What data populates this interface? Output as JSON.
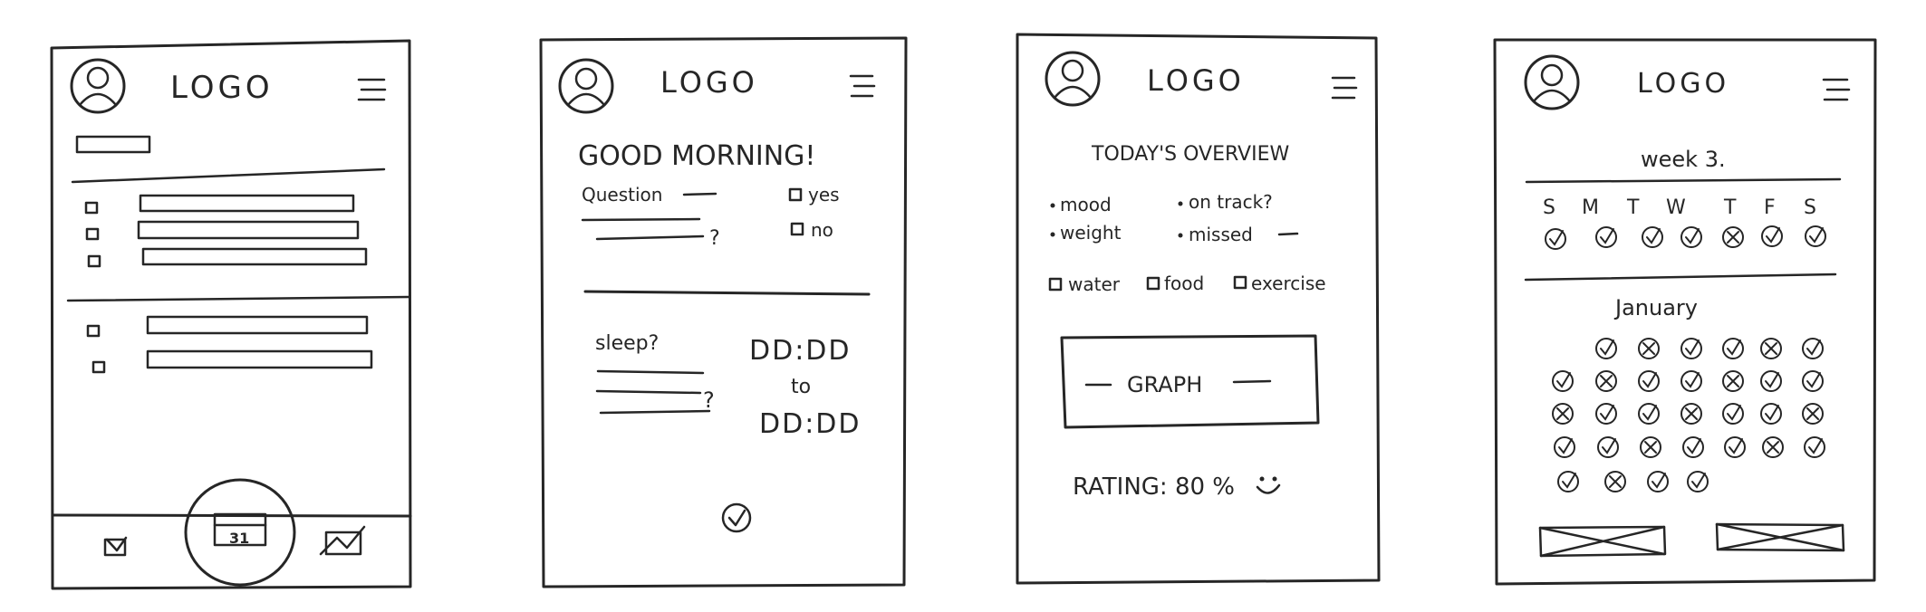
{
  "frames": [
    {
      "logo": "LOGO",
      "bottom_nav": {
        "calendar_day": "31"
      }
    },
    {
      "logo": "LOGO",
      "greeting": "GOOD MORNING!",
      "question_label": "Question",
      "question_mark": "?",
      "yes_label": "yes",
      "no_label": "no",
      "sleep_label": "sleep?",
      "sleep_question_mark": "?",
      "time_start": "DD:DD",
      "to_label": "to",
      "time_end": "DD:DD"
    },
    {
      "logo": "LOGO",
      "title": "TODAY'S OVERVIEW",
      "mood": "mood",
      "weight": "weight",
      "on_track": "on track?",
      "missed": "missed",
      "water": "water",
      "food": "food",
      "exercise": "exercise",
      "graph_label": "GRAPH",
      "rating": "RATING: 80 %"
    },
    {
      "logo": "LOGO",
      "week_label": "week 3.",
      "days": [
        "S",
        "M",
        "T",
        "W",
        "T",
        "F",
        "S"
      ],
      "month_label": "January"
    }
  ]
}
